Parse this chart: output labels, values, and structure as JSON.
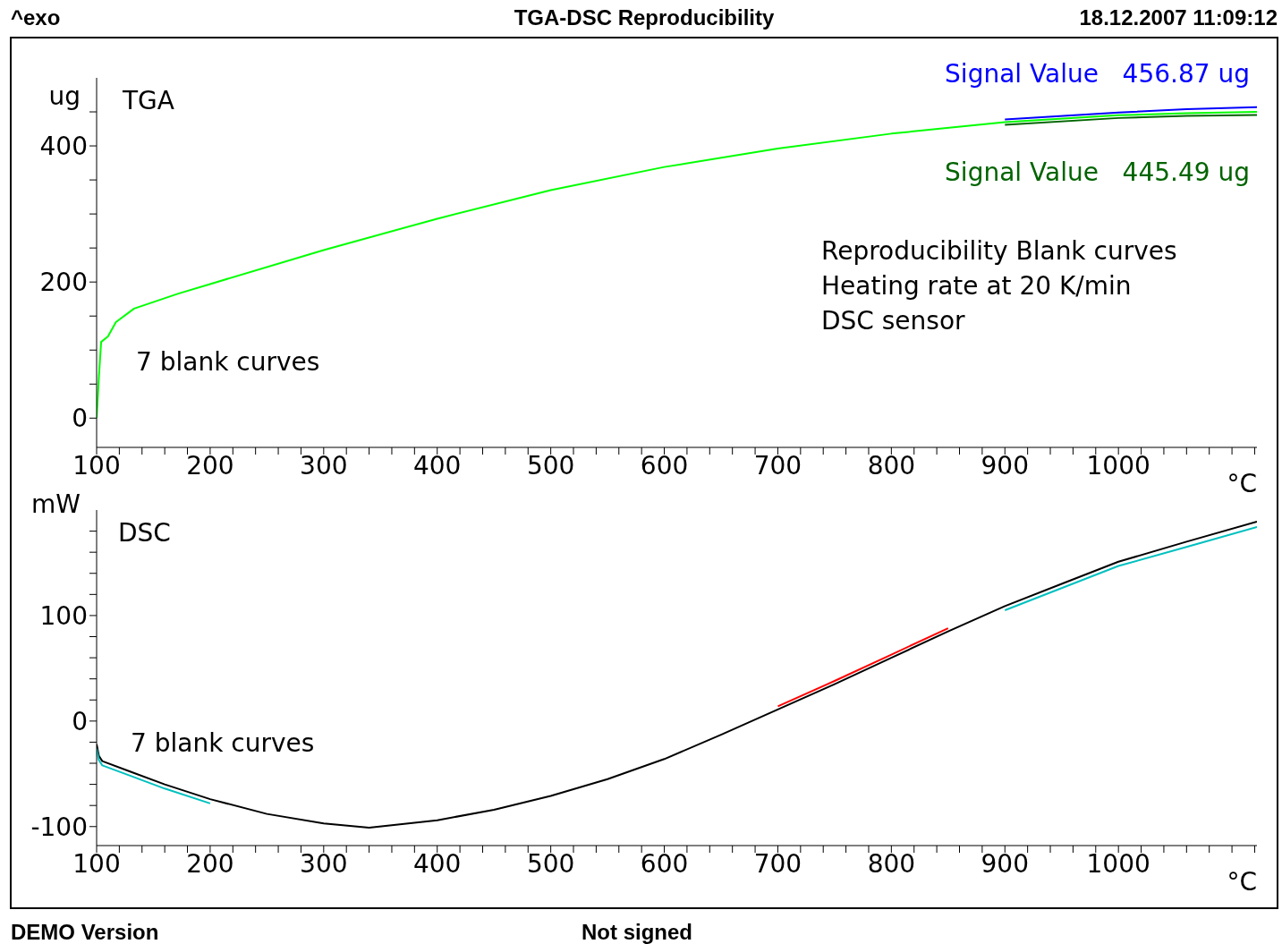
{
  "chart_data": [
    {
      "type": "line",
      "title": "TGA-DSC Reproducibility",
      "subtitle": "TGA",
      "ylabel": "ug",
      "xlabel": "°C",
      "x": [
        100,
        102,
        104,
        110,
        117,
        133,
        172,
        200,
        300,
        400,
        500,
        600,
        700,
        800,
        900,
        1000,
        1060,
        1122
      ],
      "series": [
        {
          "color": "#00ff00",
          "values": [
            0,
            60,
            112,
            120,
            141,
            161,
            183,
            197,
            247,
            293,
            335,
            369,
            396,
            418,
            435,
            445,
            448,
            450
          ]
        },
        {
          "color": "#0000ff",
          "values": [
            null,
            null,
            null,
            null,
            null,
            null,
            null,
            null,
            null,
            null,
            null,
            null,
            null,
            null,
            439,
            449,
            454,
            456.87
          ]
        },
        {
          "color": "#006400",
          "values": [
            null,
            null,
            null,
            null,
            null,
            null,
            null,
            null,
            null,
            null,
            null,
            null,
            null,
            null,
            431,
            441,
            444,
            445.49
          ]
        }
      ],
      "xlim": [
        100,
        1122
      ],
      "ylim": [
        -43,
        500
      ],
      "xticks": [
        100,
        {
          "value": 120,
          "label": null
        },
        {
          "value": 140,
          "label": null
        },
        {
          "value": 160,
          "label": null
        },
        {
          "value": 180,
          "label": null
        },
        200,
        {
          "value": 220,
          "label": null
        },
        {
          "value": 240,
          "label": null
        },
        {
          "value": 260,
          "label": null
        },
        {
          "value": 280,
          "label": null
        },
        300,
        {
          "value": 320,
          "label": null
        },
        {
          "value": 340,
          "label": null
        },
        {
          "value": 360,
          "label": null
        },
        {
          "value": 380,
          "label": null
        },
        400,
        {
          "value": 420,
          "label": null
        },
        {
          "value": 440,
          "label": null
        },
        {
          "value": 460,
          "label": null
        },
        {
          "value": 480,
          "label": null
        },
        500,
        {
          "value": 520,
          "label": null
        },
        {
          "value": 540,
          "label": null
        },
        {
          "value": 560,
          "label": null
        },
        {
          "value": 580,
          "label": null
        },
        600,
        {
          "value": 620,
          "label": null
        },
        {
          "value": 640,
          "label": null
        },
        {
          "value": 660,
          "label": null
        },
        {
          "value": 680,
          "label": null
        },
        700,
        {
          "value": 720,
          "label": null
        },
        {
          "value": 740,
          "label": null
        },
        {
          "value": 760,
          "label": null
        },
        {
          "value": 780,
          "label": null
        },
        800,
        {
          "value": 820,
          "label": null
        },
        {
          "value": 840,
          "label": null
        },
        {
          "value": 860,
          "label": null
        },
        {
          "value": 880,
          "label": null
        },
        900,
        {
          "value": 920,
          "label": null
        },
        {
          "value": 940,
          "label": null
        },
        {
          "value": 960,
          "label": null
        },
        {
          "value": 980,
          "label": null
        },
        1000,
        {
          "value": 1020,
          "label": null
        },
        {
          "value": 1040,
          "label": null
        },
        {
          "value": 1060,
          "label": null
        },
        {
          "value": 1080,
          "label": null
        },
        {
          "value": 1100,
          "label": null
        },
        {
          "value": 1120,
          "label": null
        }
      ],
      "yticks": [
        0,
        {
          "value": 50,
          "label": null
        },
        {
          "value": 100,
          "label": null
        },
        {
          "value": 150,
          "label": null
        },
        200,
        {
          "value": 250,
          "label": null
        },
        {
          "value": 300,
          "label": null
        },
        {
          "value": 350,
          "label": null
        },
        400,
        {
          "value": 450,
          "label": null
        }
      ],
      "annotations": [
        "^exo",
        "18.12.2007 11:09:12",
        {
          "text": "Signal Value   456.87 ug",
          "x": 1122,
          "y": 456.87
        },
        {
          "text": "Signal Value   445.49 ug",
          "x": 1122,
          "y": 445.49
        },
        "Reproducibility Blank curves",
        "Heating rate at 20 K/min",
        "DSC sensor",
        "7 blank curves"
      ]
    },
    {
      "type": "line",
      "subtitle": "DSC",
      "ylabel": "mW",
      "xlabel": "°C",
      "x": [
        100,
        102,
        105,
        130,
        160,
        200,
        250,
        300,
        340,
        400,
        450,
        500,
        550,
        600,
        650,
        700,
        750,
        800,
        850,
        900,
        950,
        1000,
        1060,
        1122
      ],
      "series": [
        {
          "color": "#000000",
          "values": [
            -22,
            -33,
            -38,
            -48,
            -60,
            -74,
            -88,
            -97,
            -101,
            -94,
            -84,
            -71,
            -55,
            -36,
            -13,
            11,
            35,
            60,
            85,
            109,
            130,
            151,
            170,
            189
          ]
        },
        {
          "color": "#00c0c0",
          "values": [
            -26,
            -37,
            -42,
            -52,
            -64,
            -78,
            null,
            null,
            null,
            null,
            null,
            null,
            null,
            null,
            null,
            null,
            null,
            null,
            null,
            105,
            126,
            147,
            165,
            184
          ]
        },
        {
          "color": "#ff0000",
          "values": [
            null,
            null,
            null,
            null,
            null,
            null,
            null,
            null,
            null,
            null,
            null,
            null,
            null,
            null,
            null,
            14,
            38,
            63,
            88,
            null,
            null,
            null,
            null,
            null
          ]
        }
      ],
      "xlim": [
        100,
        1122
      ],
      "ylim": [
        -118,
        200
      ],
      "xticks": [
        100,
        {
          "value": 120,
          "label": null
        },
        {
          "value": 140,
          "label": null
        },
        {
          "value": 160,
          "label": null
        },
        {
          "value": 180,
          "label": null
        },
        200,
        {
          "value": 220,
          "label": null
        },
        {
          "value": 240,
          "label": null
        },
        {
          "value": 260,
          "label": null
        },
        {
          "value": 280,
          "label": null
        },
        300,
        {
          "value": 320,
          "label": null
        },
        {
          "value": 340,
          "label": null
        },
        {
          "value": 360,
          "label": null
        },
        {
          "value": 380,
          "label": null
        },
        400,
        {
          "value": 420,
          "label": null
        },
        {
          "value": 440,
          "label": null
        },
        {
          "value": 460,
          "label": null
        },
        {
          "value": 480,
          "label": null
        },
        500,
        {
          "value": 520,
          "label": null
        },
        {
          "value": 540,
          "label": null
        },
        {
          "value": 560,
          "label": null
        },
        {
          "value": 580,
          "label": null
        },
        600,
        {
          "value": 620,
          "label": null
        },
        {
          "value": 640,
          "label": null
        },
        {
          "value": 660,
          "label": null
        },
        {
          "value": 680,
          "label": null
        },
        700,
        {
          "value": 720,
          "label": null
        },
        {
          "value": 740,
          "label": null
        },
        {
          "value": 760,
          "label": null
        },
        {
          "value": 780,
          "label": null
        },
        800,
        {
          "value": 820,
          "label": null
        },
        {
          "value": 840,
          "label": null
        },
        {
          "value": 860,
          "label": null
        },
        {
          "value": 880,
          "label": null
        },
        900,
        {
          "value": 920,
          "label": null
        },
        {
          "value": 940,
          "label": null
        },
        {
          "value": 960,
          "label": null
        },
        {
          "value": 980,
          "label": null
        },
        1000,
        {
          "value": 1020,
          "label": null
        },
        {
          "value": 1040,
          "label": null
        },
        {
          "value": 1060,
          "label": null
        },
        {
          "value": 1080,
          "label": null
        },
        {
          "value": 1100,
          "label": null
        },
        {
          "value": 1120,
          "label": null
        }
      ],
      "yticks": [
        -100,
        {
          "value": -80,
          "label": null
        },
        {
          "value": -60,
          "label": null
        },
        {
          "value": -40,
          "label": null
        },
        {
          "value": -20,
          "label": null
        },
        0,
        {
          "value": 20,
          "label": null
        },
        {
          "value": 40,
          "label": null
        },
        {
          "value": 60,
          "label": null
        },
        {
          "value": 80,
          "label": null
        },
        100,
        {
          "value": 120,
          "label": null
        },
        {
          "value": 140,
          "label": null
        },
        {
          "value": 160,
          "label": null
        },
        {
          "value": 180,
          "label": null
        }
      ],
      "annotations": [
        "7 blank curves",
        "DEMO Version",
        "Not signed"
      ]
    }
  ]
}
